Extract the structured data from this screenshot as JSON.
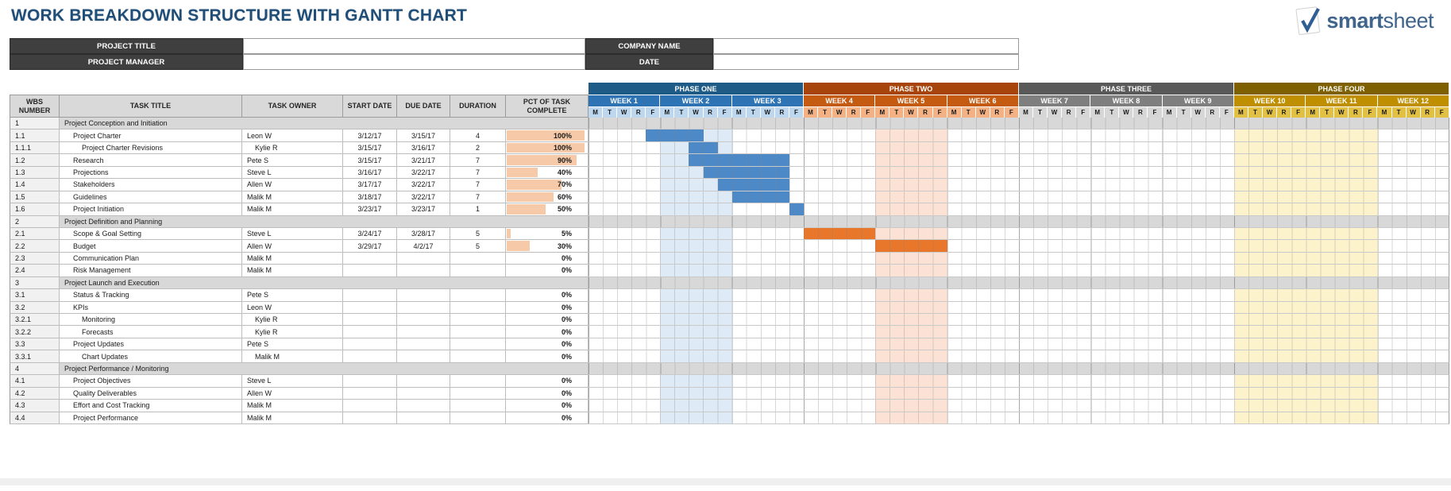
{
  "title": "WORK BREAKDOWN STRUCTURE WITH GANTT CHART",
  "logo": {
    "smart": "smart",
    "sheet": "sheet",
    "check_color": "#2F5E93",
    "text_color": "#3F658C"
  },
  "info_fields": [
    {
      "label": "PROJECT TITLE",
      "value": ""
    },
    {
      "label": "COMPANY NAME",
      "value": ""
    },
    {
      "label": "PROJECT MANAGER",
      "value": ""
    },
    {
      "label": "DATE",
      "value": ""
    }
  ],
  "table": {
    "headers": [
      "WBS NUMBER",
      "TASK TITLE",
      "TASK OWNER",
      "START DATE",
      "DUE DATE",
      "DURATION",
      "PCT OF TASK COMPLETE"
    ]
  },
  "days": [
    "M",
    "T",
    "W",
    "R",
    "F"
  ],
  "phases": [
    {
      "name": "PHASE ONE",
      "phase_color": "#1F5B87",
      "week_color": "#2E74B5",
      "day_color": "#BDD7EE",
      "weeks": [
        "WEEK 1",
        "WEEK 2",
        "WEEK 3"
      ]
    },
    {
      "name": "PHASE TWO",
      "phase_color": "#A6440B",
      "week_color": "#C55A11",
      "day_color": "#F4B183",
      "weeks": [
        "WEEK 4",
        "WEEK 5",
        "WEEK 6"
      ]
    },
    {
      "name": "PHASE THREE",
      "phase_color": "#595959",
      "week_color": "#7F7F7F",
      "day_color": "#D6D6D6",
      "weeks": [
        "WEEK 7",
        "WEEK 8",
        "WEEK 9"
      ]
    },
    {
      "name": "PHASE FOUR",
      "phase_color": "#7E6000",
      "week_color": "#BF8F00",
      "day_color": "#E2C044",
      "weeks": [
        "WEEK 10",
        "WEEK 11",
        "WEEK 12"
      ]
    }
  ],
  "bands": [
    {
      "from": 6,
      "to": 10,
      "color": "#DEEAF6"
    },
    {
      "from": 21,
      "to": 25,
      "color": "#FBE2D5"
    },
    {
      "from": 46,
      "to": 55,
      "color": "#FCF2CC"
    }
  ],
  "bar_colors": {
    "blue": "#4D89C6",
    "orange": "#E8762B"
  },
  "pct_bar_color": "#F6C9A8",
  "rows": [
    {
      "wbs": "1",
      "section": true,
      "title": "Project Conception and Initiation"
    },
    {
      "wbs": "1.1",
      "level": 2,
      "title": "Project Charter",
      "owner": "Leon W",
      "start": "3/12/17",
      "due": "3/15/17",
      "duration": "4",
      "pct": 100,
      "pct_label": "100%",
      "bar": {
        "from": 5,
        "to": 8,
        "color": "blue"
      }
    },
    {
      "wbs": "1.1.1",
      "level": 3,
      "title": "Project Charter Revisions",
      "owner": "Kylie R",
      "start": "3/15/17",
      "due": "3/16/17",
      "duration": "2",
      "pct": 100,
      "pct_label": "100%",
      "bar": {
        "from": 8,
        "to": 9,
        "color": "blue"
      }
    },
    {
      "wbs": "1.2",
      "level": 2,
      "title": "Research",
      "owner": "Pete S",
      "start": "3/15/17",
      "due": "3/21/17",
      "duration": "7",
      "pct": 90,
      "pct_label": "90%",
      "bar": {
        "from": 8,
        "to": 14,
        "color": "blue"
      }
    },
    {
      "wbs": "1.3",
      "level": 2,
      "title": "Projections",
      "owner": "Steve L",
      "start": "3/16/17",
      "due": "3/22/17",
      "duration": "7",
      "pct": 40,
      "pct_label": "40%",
      "bar": {
        "from": 9,
        "to": 14,
        "color": "blue"
      }
    },
    {
      "wbs": "1.4",
      "level": 2,
      "title": "Stakeholders",
      "owner": "Allen W",
      "start": "3/17/17",
      "due": "3/22/17",
      "duration": "7",
      "pct": 70,
      "pct_label": "70%",
      "bar": {
        "from": 10,
        "to": 14,
        "color": "blue"
      }
    },
    {
      "wbs": "1.5",
      "level": 2,
      "title": "Guidelines",
      "owner": "Malik M",
      "start": "3/18/17",
      "due": "3/22/17",
      "duration": "7",
      "pct": 60,
      "pct_label": "60%",
      "bar": {
        "from": 11,
        "to": 14,
        "color": "blue"
      }
    },
    {
      "wbs": "1.6",
      "level": 2,
      "title": "Project Initiation",
      "owner": "Malik M",
      "start": "3/23/17",
      "due": "3/23/17",
      "duration": "1",
      "pct": 50,
      "pct_label": "50%",
      "bar": {
        "from": 15,
        "to": 15,
        "color": "blue"
      }
    },
    {
      "wbs": "2",
      "section": true,
      "title": "Project Definition and Planning"
    },
    {
      "wbs": "2.1",
      "level": 2,
      "title": "Scope & Goal Setting",
      "owner": "Steve L",
      "start": "3/24/17",
      "due": "3/28/17",
      "duration": "5",
      "pct": 5,
      "pct_label": "5%",
      "bar": {
        "from": 16,
        "to": 20,
        "color": "orange"
      }
    },
    {
      "wbs": "2.2",
      "level": 2,
      "title": "Budget",
      "owner": "Allen W",
      "start": "3/29/17",
      "due": "4/2/17",
      "duration": "5",
      "pct": 30,
      "pct_label": "30%",
      "bar": {
        "from": 21,
        "to": 25,
        "color": "orange"
      }
    },
    {
      "wbs": "2.3",
      "level": 2,
      "title": "Communication Plan",
      "owner": "Malik M",
      "start": "",
      "due": "",
      "duration": "",
      "pct": 0,
      "pct_label": "0%"
    },
    {
      "wbs": "2.4",
      "level": 2,
      "title": "Risk Management",
      "owner": "Malik M",
      "start": "",
      "due": "",
      "duration": "",
      "pct": 0,
      "pct_label": "0%"
    },
    {
      "wbs": "3",
      "section": true,
      "title": "Project Launch and Execution"
    },
    {
      "wbs": "3.1",
      "level": 2,
      "title": "Status & Tracking",
      "owner": "Pete S",
      "start": "",
      "due": "",
      "duration": "",
      "pct": 0,
      "pct_label": "0%"
    },
    {
      "wbs": "3.2",
      "level": 2,
      "title": "KPIs",
      "owner": "Leon W",
      "start": "",
      "due": "",
      "duration": "",
      "pct": 0,
      "pct_label": "0%"
    },
    {
      "wbs": "3.2.1",
      "level": 3,
      "title": "Monitoring",
      "owner": "Kylie R",
      "start": "",
      "due": "",
      "duration": "",
      "pct": 0,
      "pct_label": "0%"
    },
    {
      "wbs": "3.2.2",
      "level": 3,
      "title": "Forecasts",
      "owner": "Kylie R",
      "start": "",
      "due": "",
      "duration": "",
      "pct": 0,
      "pct_label": "0%"
    },
    {
      "wbs": "3.3",
      "level": 2,
      "title": "Project Updates",
      "owner": "Pete S",
      "start": "",
      "due": "",
      "duration": "",
      "pct": 0,
      "pct_label": "0%"
    },
    {
      "wbs": "3.3.1",
      "level": 3,
      "title": "Chart Updates",
      "owner": "Malik M",
      "start": "",
      "due": "",
      "duration": "",
      "pct": 0,
      "pct_label": "0%"
    },
    {
      "wbs": "4",
      "section": true,
      "title": "Project Performance / Monitoring"
    },
    {
      "wbs": "4.1",
      "level": 2,
      "title": "Project Objectives",
      "owner": "Steve L",
      "start": "",
      "due": "",
      "duration": "",
      "pct": 0,
      "pct_label": "0%"
    },
    {
      "wbs": "4.2",
      "level": 2,
      "title": "Quality Deliverables",
      "owner": "Allen W",
      "start": "",
      "due": "",
      "duration": "",
      "pct": 0,
      "pct_label": "0%"
    },
    {
      "wbs": "4.3",
      "level": 2,
      "title": "Effort and Cost Tracking",
      "owner": "Malik M",
      "start": "",
      "due": "",
      "duration": "",
      "pct": 0,
      "pct_label": "0%"
    },
    {
      "wbs": "4.4",
      "level": 2,
      "title": "Project Performance",
      "owner": "Malik M",
      "start": "",
      "due": "",
      "duration": "",
      "pct": 0,
      "pct_label": "0%"
    }
  ]
}
